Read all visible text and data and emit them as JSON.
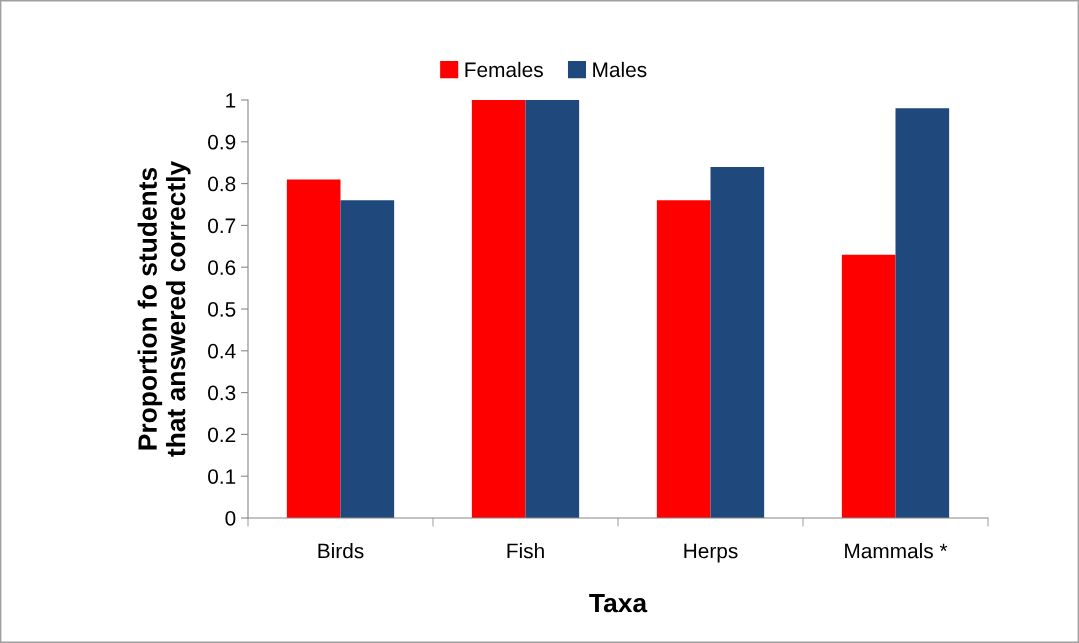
{
  "chart_data": {
    "type": "bar",
    "xlabel": "Taxa",
    "ylabel": "Proportion fo students\nthat answered correctly",
    "categories": [
      "Birds",
      "Fish",
      "Herps",
      "Mammals *"
    ],
    "series": [
      {
        "name": "Females",
        "color": "#ff0000",
        "values": [
          0.81,
          1,
          0.76,
          0.63
        ]
      },
      {
        "name": "Males",
        "color": "#1f497d",
        "values": [
          0.76,
          1,
          0.84,
          0.98
        ]
      }
    ],
    "ylim": [
      0,
      1
    ],
    "yticks": [
      0,
      0.1,
      0.2,
      0.3,
      0.4,
      0.5,
      0.6,
      0.7,
      0.8,
      0.9,
      1
    ],
    "grid": false,
    "legend": "top"
  }
}
